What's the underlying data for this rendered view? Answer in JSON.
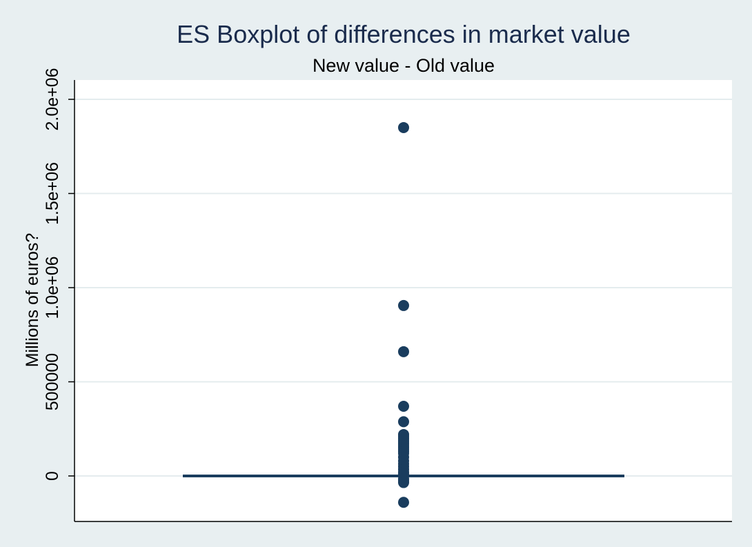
{
  "colors": {
    "background": "#e8eff1",
    "plot_background": "#ffffff",
    "grid": "#e4ecee",
    "series": "#1a3d5e"
  },
  "chart_data": {
    "type": "box",
    "title": "ES Boxplot of differences in market value",
    "subtitle": "New value - Old value",
    "xlabel": "",
    "ylabel": "Millions of euros?",
    "ylim": [
      -240000,
      2100000
    ],
    "yticks": [
      0,
      500000,
      1000000,
      1500000,
      2000000
    ],
    "ytick_labels": [
      "0",
      "500000",
      "1.0e+06",
      "1.5e+06",
      "2.0e+06"
    ],
    "grid": true,
    "legend": "none",
    "box": {
      "median": 0,
      "q1": 0,
      "q3": 0,
      "whisker_low": 0,
      "whisker_high": 0
    },
    "outliers": [
      1850000,
      905000,
      660000,
      370000,
      288000,
      220000,
      210000,
      200000,
      190000,
      180000,
      170000,
      160000,
      150000,
      140000,
      130000,
      120000,
      100000,
      80000,
      65000,
      50000,
      35000,
      20000,
      10000,
      -15000,
      -25000,
      -35000,
      -140000
    ]
  }
}
